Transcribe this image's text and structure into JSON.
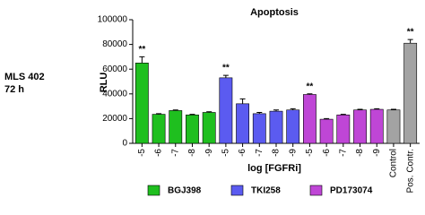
{
  "chart_data": {
    "type": "bar",
    "title": "Apoptosis",
    "side_labels": [
      "MLS 402",
      "72 h"
    ],
    "ylabel": "RLU",
    "xlabel": "log [FGFRi]",
    "categories": [
      "-5",
      "-6",
      "-7",
      "-8",
      "-9",
      "-5",
      "-6",
      "-7",
      "-8",
      "-9",
      "-5",
      "-6",
      "-7",
      "-8",
      "-9",
      "Control",
      "Pos. Contr."
    ],
    "series": [
      {
        "name": "BGJ398",
        "color": "#1fbf1f",
        "values": [
          65000,
          23500,
          26500,
          23000,
          25000,
          null,
          null,
          null,
          null,
          null,
          null,
          null,
          null,
          null,
          null,
          null,
          null
        ],
        "errors": [
          5000,
          500,
          500,
          500,
          500,
          null,
          null,
          null,
          null,
          null,
          null,
          null,
          null,
          null,
          null,
          null,
          null
        ]
      },
      {
        "name": "TKI258",
        "color": "#5b5bf0",
        "values": [
          null,
          null,
          null,
          null,
          null,
          53000,
          32000,
          24000,
          26000,
          27000,
          null,
          null,
          null,
          null,
          null,
          null,
          null
        ],
        "errors": [
          null,
          null,
          null,
          null,
          null,
          2000,
          4000,
          1000,
          1000,
          1000,
          null,
          null,
          null,
          null,
          null,
          null,
          null
        ]
      },
      {
        "name": "PD173074",
        "color": "#bf46d6",
        "values": [
          null,
          null,
          null,
          null,
          null,
          null,
          null,
          null,
          null,
          null,
          39500,
          19500,
          23000,
          27000,
          27500,
          null,
          null
        ],
        "errors": [
          null,
          null,
          null,
          null,
          null,
          null,
          null,
          null,
          null,
          null,
          500,
          500,
          500,
          500,
          500,
          null,
          null
        ]
      },
      {
        "color": "#a3a3a3",
        "values": [
          null,
          null,
          null,
          null,
          null,
          null,
          null,
          null,
          null,
          null,
          null,
          null,
          null,
          null,
          null,
          27000,
          81000
        ],
        "errors": [
          null,
          null,
          null,
          null,
          null,
          null,
          null,
          null,
          null,
          null,
          null,
          null,
          null,
          null,
          null,
          500,
          3000
        ]
      }
    ],
    "annotations": [
      {
        "text": "**",
        "index": 0
      },
      {
        "text": "**",
        "index": 5
      },
      {
        "text": "**",
        "index": 10
      },
      {
        "text": "**",
        "index": 16
      }
    ],
    "ylim": [
      0,
      100000
    ],
    "yticks": [
      0,
      20000,
      40000,
      60000,
      80000,
      100000
    ]
  }
}
